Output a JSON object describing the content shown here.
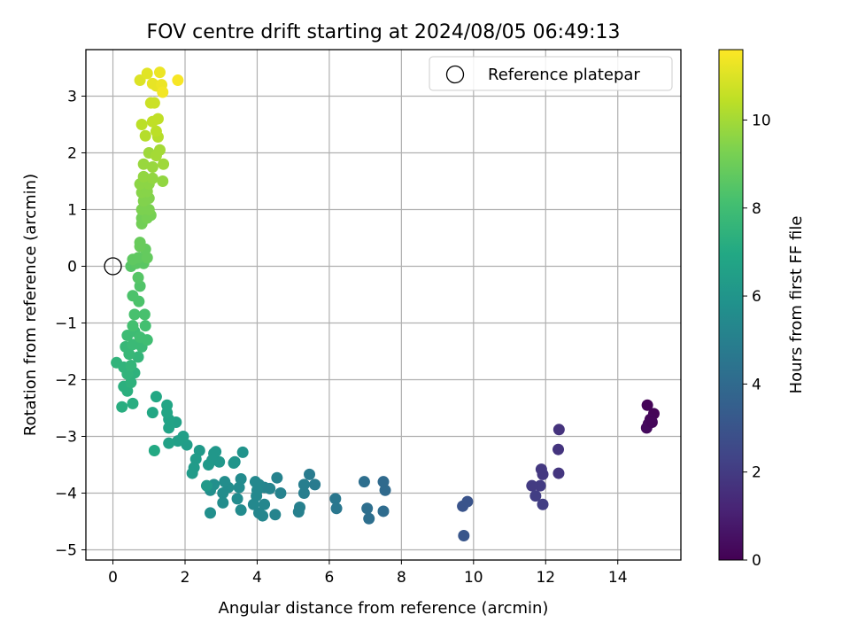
{
  "chart_data": {
    "type": "scatter",
    "title": "FOV centre drift starting at 2024/08/05 06:49:13",
    "xlabel": "Angular distance from reference (arcmin)",
    "ylabel": "Rotation from reference (arcmin)",
    "xlim": [
      -0.75,
      15.75
    ],
    "ylim": [
      -5.18,
      3.82
    ],
    "xticks": [
      0,
      2,
      4,
      6,
      8,
      10,
      12,
      14
    ],
    "xtick_labels": [
      "0",
      "2",
      "4",
      "6",
      "8",
      "10",
      "12",
      "14"
    ],
    "yticks": [
      -5,
      -4,
      -3,
      -2,
      -1,
      0,
      1,
      2,
      3
    ],
    "ytick_labels": [
      "−5",
      "−4",
      "−3",
      "−2",
      "−1",
      "0",
      "1",
      "2",
      "3"
    ],
    "grid": true,
    "legend": {
      "position": "top-right",
      "entries": [
        {
          "label": "Reference platepar",
          "marker": "open-circle"
        }
      ]
    },
    "reference_point": {
      "x": 0,
      "y": 0,
      "label": "Reference platepar"
    },
    "colorbar": {
      "label": "Hours from first FF file",
      "colormap": "viridis",
      "range": [
        0,
        11.6
      ],
      "ticks": [
        0,
        2,
        4,
        6,
        8,
        10
      ],
      "tick_labels": [
        "0",
        "2",
        "4",
        "6",
        "8",
        "10"
      ]
    },
    "points": [
      {
        "x": 14.82,
        "y": -2.45,
        "c": 0.1
      },
      {
        "x": 15.0,
        "y": -2.6,
        "c": 0.15
      },
      {
        "x": 14.9,
        "y": -2.7,
        "c": 0.2
      },
      {
        "x": 14.85,
        "y": -2.78,
        "c": 0.25
      },
      {
        "x": 14.8,
        "y": -2.85,
        "c": 0.3
      },
      {
        "x": 14.95,
        "y": -2.75,
        "c": 0.2
      },
      {
        "x": 12.37,
        "y": -2.88,
        "c": 1.7
      },
      {
        "x": 12.35,
        "y": -3.23,
        "c": 1.75
      },
      {
        "x": 12.36,
        "y": -3.65,
        "c": 1.8
      },
      {
        "x": 11.88,
        "y": -3.58,
        "c": 1.9
      },
      {
        "x": 11.92,
        "y": -3.67,
        "c": 1.9
      },
      {
        "x": 11.85,
        "y": -3.87,
        "c": 2.0
      },
      {
        "x": 11.62,
        "y": -3.87,
        "c": 2.0
      },
      {
        "x": 11.72,
        "y": -4.05,
        "c": 2.1
      },
      {
        "x": 11.92,
        "y": -4.2,
        "c": 2.1
      },
      {
        "x": 9.7,
        "y": -4.23,
        "c": 3.0
      },
      {
        "x": 9.83,
        "y": -4.15,
        "c": 3.0
      },
      {
        "x": 9.73,
        "y": -4.75,
        "c": 3.1
      },
      {
        "x": 7.55,
        "y": -3.95,
        "c": 4.0
      },
      {
        "x": 7.5,
        "y": -3.8,
        "c": 4.0
      },
      {
        "x": 7.5,
        "y": -4.32,
        "c": 4.1
      },
      {
        "x": 6.97,
        "y": -3.8,
        "c": 4.2
      },
      {
        "x": 7.05,
        "y": -4.27,
        "c": 4.2
      },
      {
        "x": 7.1,
        "y": -4.45,
        "c": 4.2
      },
      {
        "x": 6.17,
        "y": -4.1,
        "c": 4.6
      },
      {
        "x": 6.2,
        "y": -4.27,
        "c": 4.6
      },
      {
        "x": 5.6,
        "y": -3.85,
        "c": 4.8
      },
      {
        "x": 5.45,
        "y": -3.67,
        "c": 4.8
      },
      {
        "x": 5.3,
        "y": -3.85,
        "c": 4.9
      },
      {
        "x": 5.3,
        "y": -4.0,
        "c": 4.9
      },
      {
        "x": 5.18,
        "y": -4.25,
        "c": 5.0
      },
      {
        "x": 5.15,
        "y": -4.33,
        "c": 5.0
      },
      {
        "x": 4.65,
        "y": -4.0,
        "c": 5.1
      },
      {
        "x": 4.55,
        "y": -3.73,
        "c": 5.1
      },
      {
        "x": 4.5,
        "y": -4.38,
        "c": 5.2
      },
      {
        "x": 4.35,
        "y": -3.92,
        "c": 5.2
      },
      {
        "x": 4.2,
        "y": -3.9,
        "c": 5.2
      },
      {
        "x": 4.2,
        "y": -4.2,
        "c": 5.3
      },
      {
        "x": 4.15,
        "y": -4.4,
        "c": 5.3
      },
      {
        "x": 4.05,
        "y": -4.35,
        "c": 5.3
      },
      {
        "x": 4.05,
        "y": -3.85,
        "c": 5.3
      },
      {
        "x": 4.0,
        "y": -3.95,
        "c": 5.4
      },
      {
        "x": 3.98,
        "y": -4.05,
        "c": 5.4
      },
      {
        "x": 3.95,
        "y": -3.8,
        "c": 5.4
      },
      {
        "x": 3.9,
        "y": -4.2,
        "c": 5.4
      },
      {
        "x": 3.5,
        "y": -3.9,
        "c": 5.5
      },
      {
        "x": 3.55,
        "y": -3.75,
        "c": 5.5
      },
      {
        "x": 3.45,
        "y": -4.1,
        "c": 5.5
      },
      {
        "x": 3.55,
        "y": -4.3,
        "c": 5.5
      },
      {
        "x": 3.2,
        "y": -3.9,
        "c": 5.6
      },
      {
        "x": 3.1,
        "y": -3.8,
        "c": 5.6
      },
      {
        "x": 3.05,
        "y": -4.0,
        "c": 5.6
      },
      {
        "x": 3.05,
        "y": -4.17,
        "c": 5.6
      },
      {
        "x": 2.8,
        "y": -3.85,
        "c": 5.7
      },
      {
        "x": 2.7,
        "y": -4.35,
        "c": 5.7
      },
      {
        "x": 2.7,
        "y": -3.95,
        "c": 5.7
      },
      {
        "x": 3.6,
        "y": -3.28,
        "c": 5.9
      },
      {
        "x": 3.38,
        "y": -3.45,
        "c": 5.9
      },
      {
        "x": 3.35,
        "y": -3.47,
        "c": 6.0
      },
      {
        "x": 2.85,
        "y": -3.27,
        "c": 6.1
      },
      {
        "x": 2.95,
        "y": -3.45,
        "c": 6.1
      },
      {
        "x": 2.8,
        "y": -3.3,
        "c": 6.1
      },
      {
        "x": 2.75,
        "y": -3.42,
        "c": 6.1
      },
      {
        "x": 2.65,
        "y": -3.5,
        "c": 6.2
      },
      {
        "x": 2.6,
        "y": -3.87,
        "c": 6.2
      },
      {
        "x": 2.4,
        "y": -3.25,
        "c": 6.2
      },
      {
        "x": 2.3,
        "y": -3.4,
        "c": 6.3
      },
      {
        "x": 2.25,
        "y": -3.55,
        "c": 6.3
      },
      {
        "x": 2.2,
        "y": -3.65,
        "c": 6.3
      },
      {
        "x": 2.05,
        "y": -3.15,
        "c": 6.4
      },
      {
        "x": 1.95,
        "y": -3.0,
        "c": 6.5
      },
      {
        "x": 1.8,
        "y": -3.08,
        "c": 6.5
      },
      {
        "x": 1.75,
        "y": -2.75,
        "c": 6.6
      },
      {
        "x": 1.55,
        "y": -3.12,
        "c": 6.6
      },
      {
        "x": 1.55,
        "y": -2.85,
        "c": 6.7
      },
      {
        "x": 1.55,
        "y": -2.7,
        "c": 6.7
      },
      {
        "x": 1.5,
        "y": -2.45,
        "c": 6.8
      },
      {
        "x": 1.5,
        "y": -2.58,
        "c": 6.8
      },
      {
        "x": 1.2,
        "y": -2.3,
        "c": 6.9
      },
      {
        "x": 1.1,
        "y": -2.58,
        "c": 6.9
      },
      {
        "x": 1.15,
        "y": -3.25,
        "c": 7.0
      },
      {
        "x": 0.25,
        "y": -2.48,
        "c": 7.2
      },
      {
        "x": 0.55,
        "y": -2.42,
        "c": 7.2
      },
      {
        "x": 0.4,
        "y": -2.2,
        "c": 7.3
      },
      {
        "x": 0.3,
        "y": -2.12,
        "c": 7.3
      },
      {
        "x": 0.5,
        "y": -2.05,
        "c": 7.4
      },
      {
        "x": 0.6,
        "y": -1.88,
        "c": 7.4
      },
      {
        "x": 0.4,
        "y": -1.9,
        "c": 7.5
      },
      {
        "x": 0.1,
        "y": -1.7,
        "c": 7.5
      },
      {
        "x": 0.3,
        "y": -1.78,
        "c": 7.5
      },
      {
        "x": 0.5,
        "y": -1.75,
        "c": 7.6
      },
      {
        "x": 0.7,
        "y": -1.6,
        "c": 7.6
      },
      {
        "x": 0.45,
        "y": -1.55,
        "c": 7.7
      },
      {
        "x": 0.35,
        "y": -1.42,
        "c": 7.7
      },
      {
        "x": 0.55,
        "y": -1.38,
        "c": 7.8
      },
      {
        "x": 0.8,
        "y": -1.42,
        "c": 7.8
      },
      {
        "x": 0.4,
        "y": -1.22,
        "c": 7.9
      },
      {
        "x": 0.6,
        "y": -1.15,
        "c": 7.9
      },
      {
        "x": 0.75,
        "y": -1.25,
        "c": 8.0
      },
      {
        "x": 0.95,
        "y": -1.3,
        "c": 8.0
      },
      {
        "x": 0.55,
        "y": -1.05,
        "c": 8.1
      },
      {
        "x": 0.9,
        "y": -1.05,
        "c": 8.1
      },
      {
        "x": 0.6,
        "y": -0.85,
        "c": 8.2
      },
      {
        "x": 0.88,
        "y": -0.85,
        "c": 8.2
      },
      {
        "x": 0.72,
        "y": -0.62,
        "c": 8.3
      },
      {
        "x": 0.55,
        "y": -0.52,
        "c": 8.3
      },
      {
        "x": 0.75,
        "y": -0.35,
        "c": 8.4
      },
      {
        "x": 0.7,
        "y": -0.2,
        "c": 8.5
      },
      {
        "x": 0.5,
        "y": 0.0,
        "c": 8.5
      },
      {
        "x": 0.65,
        "y": 0.05,
        "c": 8.6
      },
      {
        "x": 0.85,
        "y": 0.05,
        "c": 8.6
      },
      {
        "x": 0.55,
        "y": 0.12,
        "c": 8.7
      },
      {
        "x": 0.7,
        "y": 0.15,
        "c": 8.7
      },
      {
        "x": 0.95,
        "y": 0.15,
        "c": 8.8
      },
      {
        "x": 0.9,
        "y": 0.3,
        "c": 8.8
      },
      {
        "x": 0.75,
        "y": 0.35,
        "c": 8.9
      },
      {
        "x": 0.75,
        "y": 0.42,
        "c": 8.9
      },
      {
        "x": 0.8,
        "y": 0.75,
        "c": 9.1
      },
      {
        "x": 0.8,
        "y": 0.85,
        "c": 9.1
      },
      {
        "x": 0.95,
        "y": 0.85,
        "c": 9.2
      },
      {
        "x": 1.05,
        "y": 0.9,
        "c": 9.2
      },
      {
        "x": 0.8,
        "y": 1.0,
        "c": 9.3
      },
      {
        "x": 1.0,
        "y": 1.0,
        "c": 9.3
      },
      {
        "x": 0.85,
        "y": 1.15,
        "c": 9.4
      },
      {
        "x": 1.0,
        "y": 1.2,
        "c": 9.4
      },
      {
        "x": 0.8,
        "y": 1.3,
        "c": 9.5
      },
      {
        "x": 0.95,
        "y": 1.32,
        "c": 9.5
      },
      {
        "x": 0.75,
        "y": 1.45,
        "c": 9.6
      },
      {
        "x": 1.0,
        "y": 1.45,
        "c": 9.6
      },
      {
        "x": 0.85,
        "y": 1.58,
        "c": 9.7
      },
      {
        "x": 1.1,
        "y": 1.55,
        "c": 9.7
      },
      {
        "x": 1.38,
        "y": 1.5,
        "c": 9.7
      },
      {
        "x": 0.85,
        "y": 1.8,
        "c": 9.8
      },
      {
        "x": 1.1,
        "y": 1.75,
        "c": 9.8
      },
      {
        "x": 1.4,
        "y": 1.8,
        "c": 9.9
      },
      {
        "x": 1.0,
        "y": 2.0,
        "c": 9.9
      },
      {
        "x": 1.2,
        "y": 1.95,
        "c": 10.0
      },
      {
        "x": 1.3,
        "y": 2.05,
        "c": 10.0
      },
      {
        "x": 0.9,
        "y": 2.3,
        "c": 10.3
      },
      {
        "x": 1.25,
        "y": 2.28,
        "c": 10.3
      },
      {
        "x": 1.2,
        "y": 2.38,
        "c": 10.4
      },
      {
        "x": 0.8,
        "y": 2.5,
        "c": 10.4
      },
      {
        "x": 1.1,
        "y": 2.55,
        "c": 10.5
      },
      {
        "x": 1.25,
        "y": 2.6,
        "c": 10.5
      },
      {
        "x": 1.05,
        "y": 2.88,
        "c": 10.7
      },
      {
        "x": 1.15,
        "y": 2.88,
        "c": 10.7
      },
      {
        "x": 0.75,
        "y": 3.28,
        "c": 11.0
      },
      {
        "x": 0.95,
        "y": 3.4,
        "c": 11.1
      },
      {
        "x": 1.1,
        "y": 3.22,
        "c": 11.2
      },
      {
        "x": 1.2,
        "y": 3.18,
        "c": 11.2
      },
      {
        "x": 1.3,
        "y": 3.42,
        "c": 11.3
      },
      {
        "x": 1.35,
        "y": 3.2,
        "c": 11.3
      },
      {
        "x": 1.38,
        "y": 3.07,
        "c": 11.4
      },
      {
        "x": 1.8,
        "y": 3.28,
        "c": 11.5
      }
    ]
  }
}
